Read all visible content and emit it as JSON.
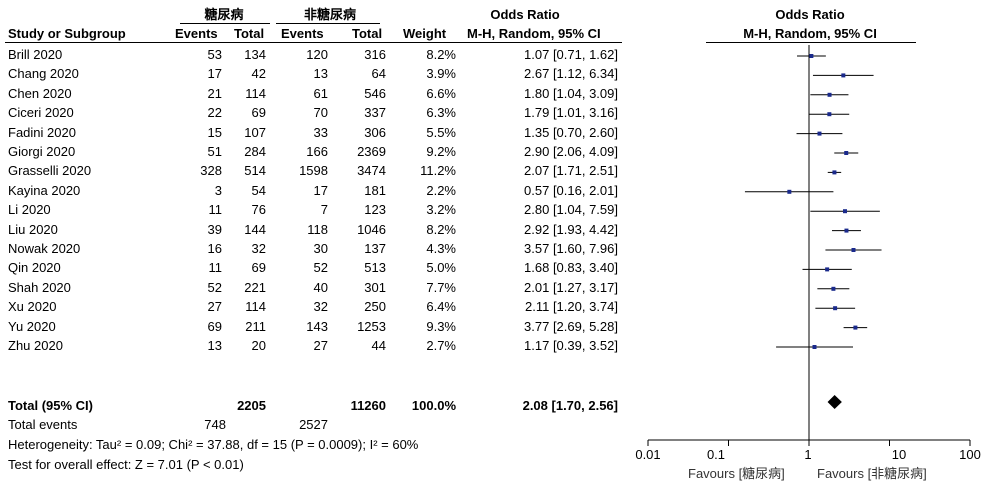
{
  "table": {
    "group_exp": "糖尿病",
    "group_ctl": "非糖尿病",
    "headers": {
      "study": "Study or Subgroup",
      "events_exp": "Events",
      "total_exp": "Total",
      "events_ctl": "Events",
      "total_ctl": "Total",
      "weight": "Weight",
      "or_title": "Odds Ratio",
      "or_method": "M-H, Random, 95% CI"
    },
    "rows": [
      {
        "study": "Brill 2020",
        "e1": "53",
        "t1": "134",
        "e2": "120",
        "t2": "316",
        "w": "8.2%",
        "ci": "1.07 [0.71, 1.62]"
      },
      {
        "study": "Chang 2020",
        "e1": "17",
        "t1": "42",
        "e2": "13",
        "t2": "64",
        "w": "3.9%",
        "ci": "2.67 [1.12, 6.34]"
      },
      {
        "study": "Chen 2020",
        "e1": "21",
        "t1": "114",
        "e2": "61",
        "t2": "546",
        "w": "6.6%",
        "ci": "1.80 [1.04, 3.09]"
      },
      {
        "study": "Ciceri 2020",
        "e1": "22",
        "t1": "69",
        "e2": "70",
        "t2": "337",
        "w": "6.3%",
        "ci": "1.79 [1.01, 3.16]"
      },
      {
        "study": "Fadini 2020",
        "e1": "15",
        "t1": "107",
        "e2": "33",
        "t2": "306",
        "w": "5.5%",
        "ci": "1.35 [0.70, 2.60]"
      },
      {
        "study": "Giorgi 2020",
        "e1": "51",
        "t1": "284",
        "e2": "166",
        "t2": "2369",
        "w": "9.2%",
        "ci": "2.90 [2.06, 4.09]"
      },
      {
        "study": "Grasselli 2020",
        "e1": "328",
        "t1": "514",
        "e2": "1598",
        "t2": "3474",
        "w": "11.2%",
        "ci": "2.07 [1.71, 2.51]"
      },
      {
        "study": "Kayina 2020",
        "e1": "3",
        "t1": "54",
        "e2": "17",
        "t2": "181",
        "w": "2.2%",
        "ci": "0.57 [0.16, 2.01]"
      },
      {
        "study": "Li 2020",
        "e1": "11",
        "t1": "76",
        "e2": "7",
        "t2": "123",
        "w": "3.2%",
        "ci": "2.80 [1.04, 7.59]"
      },
      {
        "study": "Liu 2020",
        "e1": "39",
        "t1": "144",
        "e2": "118",
        "t2": "1046",
        "w": "8.2%",
        "ci": "2.92 [1.93, 4.42]"
      },
      {
        "study": "Nowak 2020",
        "e1": "16",
        "t1": "32",
        "e2": "30",
        "t2": "137",
        "w": "4.3%",
        "ci": "3.57 [1.60, 7.96]"
      },
      {
        "study": "Qin 2020",
        "e1": "11",
        "t1": "69",
        "e2": "52",
        "t2": "513",
        "w": "5.0%",
        "ci": "1.68 [0.83, 3.40]"
      },
      {
        "study": "Shah 2020",
        "e1": "52",
        "t1": "221",
        "e2": "40",
        "t2": "301",
        "w": "7.7%",
        "ci": "2.01 [1.27, 3.17]"
      },
      {
        "study": "Xu 2020",
        "e1": "27",
        "t1": "114",
        "e2": "32",
        "t2": "250",
        "w": "6.4%",
        "ci": "2.11 [1.20, 3.74]"
      },
      {
        "study": "Yu 2020",
        "e1": "69",
        "t1": "211",
        "e2": "143",
        "t2": "1253",
        "w": "9.3%",
        "ci": "3.77 [2.69, 5.28]"
      },
      {
        "study": "Zhu 2020",
        "e1": "13",
        "t1": "20",
        "e2": "27",
        "t2": "44",
        "w": "2.7%",
        "ci": "1.17 [0.39, 3.52]"
      }
    ],
    "total": {
      "label": "Total (95% CI)",
      "t1": "2205",
      "t2": "11260",
      "w": "100.0%",
      "ci": "2.08 [1.70, 2.56]"
    },
    "total_events": {
      "label": "Total events",
      "e1": "748",
      "e2": "2527"
    },
    "heterogeneity": "Heterogeneity: Tau² = 0.09; Chi² = 37.88, df = 15 (P = 0.0009); I² = 60%",
    "overall_effect": "Test for overall effect: Z = 7.01 (P < 0.01)"
  },
  "chart_data": {
    "type": "forest",
    "title": "Odds Ratio",
    "subtitle": "M-H, Random, 95% CI",
    "x_scale": "log",
    "xlim": [
      0.01,
      100
    ],
    "ticks": [
      0.01,
      0.1,
      1,
      10,
      100
    ],
    "tick_labels": [
      "0.01",
      "0.1",
      "1",
      "10",
      "100"
    ],
    "favours_left": "Favours [糖尿病]",
    "favours_right": "Favours [非糖尿病]",
    "studies": [
      {
        "name": "Brill 2020",
        "or": 1.07,
        "lo": 0.71,
        "hi": 1.62
      },
      {
        "name": "Chang 2020",
        "or": 2.67,
        "lo": 1.12,
        "hi": 6.34
      },
      {
        "name": "Chen 2020",
        "or": 1.8,
        "lo": 1.04,
        "hi": 3.09
      },
      {
        "name": "Ciceri 2020",
        "or": 1.79,
        "lo": 1.01,
        "hi": 3.16
      },
      {
        "name": "Fadini 2020",
        "or": 1.35,
        "lo": 0.7,
        "hi": 2.6
      },
      {
        "name": "Giorgi 2020",
        "or": 2.9,
        "lo": 2.06,
        "hi": 4.09
      },
      {
        "name": "Grasselli 2020",
        "or": 2.07,
        "lo": 1.71,
        "hi": 2.51
      },
      {
        "name": "Kayina 2020",
        "or": 0.57,
        "lo": 0.16,
        "hi": 2.01
      },
      {
        "name": "Li 2020",
        "or": 2.8,
        "lo": 1.04,
        "hi": 7.59
      },
      {
        "name": "Liu 2020",
        "or": 2.92,
        "lo": 1.93,
        "hi": 4.42
      },
      {
        "name": "Nowak 2020",
        "or": 3.57,
        "lo": 1.6,
        "hi": 7.96
      },
      {
        "name": "Qin 2020",
        "or": 1.68,
        "lo": 0.83,
        "hi": 3.4
      },
      {
        "name": "Shah 2020",
        "or": 2.01,
        "lo": 1.27,
        "hi": 3.17
      },
      {
        "name": "Xu 2020",
        "or": 2.11,
        "lo": 1.2,
        "hi": 3.74
      },
      {
        "name": "Yu 2020",
        "or": 3.77,
        "lo": 2.69,
        "hi": 5.28
      },
      {
        "name": "Zhu 2020",
        "or": 1.17,
        "lo": 0.39,
        "hi": 3.52
      }
    ],
    "pooled": {
      "or": 2.08,
      "lo": 1.7,
      "hi": 2.56
    },
    "colors": {
      "study_marker": "#1a2a8c",
      "line": "#000000",
      "diamond": "#000000"
    }
  }
}
